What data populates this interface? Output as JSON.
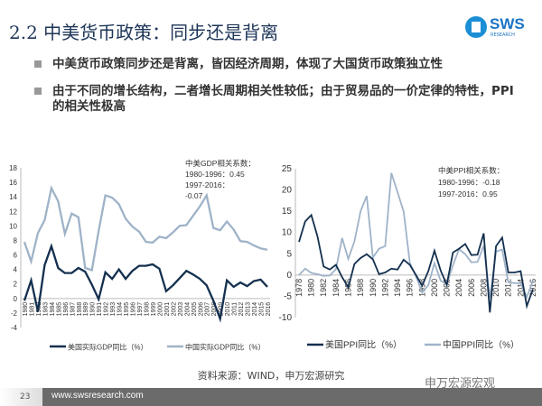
{
  "header": {
    "title": "2.2 中美货币政策：同步还是背离",
    "logo_text": "SWS",
    "logo_sub": "RESEARCH"
  },
  "bullets": [
    "中美货币政策同步还是背离，皆因经济周期，体现了大国货币政策独立性",
    "由于不同的增长结构，二者增长周期相关性较低；由于贸易品的一价定律的特性，PPI的相关性极高"
  ],
  "chart_data": [
    {
      "type": "line",
      "title": "",
      "ylim": [
        -4,
        18
      ],
      "yticks": [
        -4,
        -2,
        0,
        2,
        4,
        6,
        8,
        10,
        12,
        14,
        16,
        18
      ],
      "x": [
        1980,
        1981,
        1982,
        1983,
        1984,
        1985,
        1986,
        1987,
        1988,
        1989,
        1990,
        1991,
        1992,
        1993,
        1994,
        1995,
        1996,
        1997,
        1998,
        1999,
        2000,
        2001,
        2002,
        2003,
        2004,
        2005,
        2006,
        2007,
        2008,
        2009,
        2010,
        2011,
        2012,
        2013,
        2014,
        2015,
        2016
      ],
      "annotation": [
        "中美GDP相关系数：",
        "1980-1996：0.45",
        "1997-2016：",
        "-0.07"
      ],
      "series": [
        {
          "name": "美国实际GDP同比（%）",
          "color": "#14304f",
          "values": [
            -0.3,
            2.5,
            -1.8,
            4.6,
            7.2,
            4.2,
            3.5,
            3.5,
            4.2,
            3.7,
            1.9,
            -0.1,
            3.6,
            2.7,
            4.0,
            2.7,
            3.8,
            4.5,
            4.5,
            4.7,
            4.1,
            1.0,
            1.8,
            2.8,
            3.8,
            3.3,
            2.7,
            1.8,
            -0.3,
            -2.8,
            2.5,
            1.6,
            2.2,
            1.7,
            2.4,
            2.6,
            1.6
          ]
        },
        {
          "name": "中国实际GDP同比（%）",
          "color": "#9fb3c8",
          "values": [
            7.8,
            5.1,
            9.0,
            10.8,
            15.2,
            13.4,
            8.9,
            11.7,
            11.2,
            4.2,
            3.9,
            9.3,
            14.2,
            13.9,
            13.0,
            11.0,
            9.9,
            9.2,
            7.8,
            7.7,
            8.5,
            8.3,
            9.1,
            10.0,
            10.1,
            11.4,
            12.7,
            14.2,
            9.7,
            9.4,
            10.6,
            9.5,
            7.9,
            7.8,
            7.3,
            6.9,
            6.7
          ]
        }
      ]
    },
    {
      "type": "line",
      "title": "",
      "ylim": [
        -10,
        25
      ],
      "yticks": [
        -10,
        -5,
        0,
        5,
        10,
        15,
        20,
        25
      ],
      "x": [
        1978,
        1979,
        1980,
        1981,
        1982,
        1983,
        1984,
        1985,
        1986,
        1987,
        1988,
        1989,
        1990,
        1991,
        1992,
        1993,
        1994,
        1995,
        1996,
        1997,
        1998,
        1999,
        2000,
        2001,
        2002,
        2003,
        2004,
        2005,
        2006,
        2007,
        2008,
        2009,
        2010,
        2011,
        2012,
        2013,
        2014,
        2015,
        2016
      ],
      "annotation": [
        "中美PPI相关系数：",
        "1980-1996：-0.18",
        "1997-2016：0.95"
      ],
      "series": [
        {
          "name": "美国PPI同比（%）",
          "color": "#14304f",
          "values": [
            7.8,
            12.6,
            14.1,
            9.1,
            2.0,
            1.3,
            2.4,
            -0.5,
            -2.9,
            2.6,
            4.0,
            4.9,
            3.7,
            0.2,
            0.6,
            1.5,
            1.3,
            3.6,
            2.4,
            0.0,
            -2.5,
            0.9,
            5.7,
            1.1,
            -2.3,
            5.3,
            6.2,
            7.3,
            4.7,
            4.8,
            9.8,
            -8.8,
            6.8,
            8.8,
            0.6,
            0.6,
            0.9,
            -7.3,
            -3.3
          ]
        },
        {
          "name": "中国PPI同比（%）",
          "color": "#9fb3c8",
          "values": [
            0,
            1.5,
            0.5,
            0.2,
            -0.2,
            -0.1,
            1.4,
            8.7,
            3.8,
            7.9,
            15.0,
            18.6,
            4.1,
            6.2,
            6.8,
            24.0,
            19.5,
            14.9,
            2.9,
            -0.3,
            -4.1,
            -2.4,
            2.8,
            -1.3,
            -2.2,
            2.3,
            6.1,
            4.9,
            3.0,
            3.1,
            6.9,
            -5.4,
            5.5,
            6.0,
            -1.7,
            -1.9,
            -1.9,
            -5.2,
            -1.3
          ]
        }
      ]
    }
  ],
  "source": "资料来源：WIND，申万宏源研究",
  "watermark": "申万宏源宏观",
  "footer": {
    "page": "23",
    "url": "www.swsresearch.com"
  }
}
